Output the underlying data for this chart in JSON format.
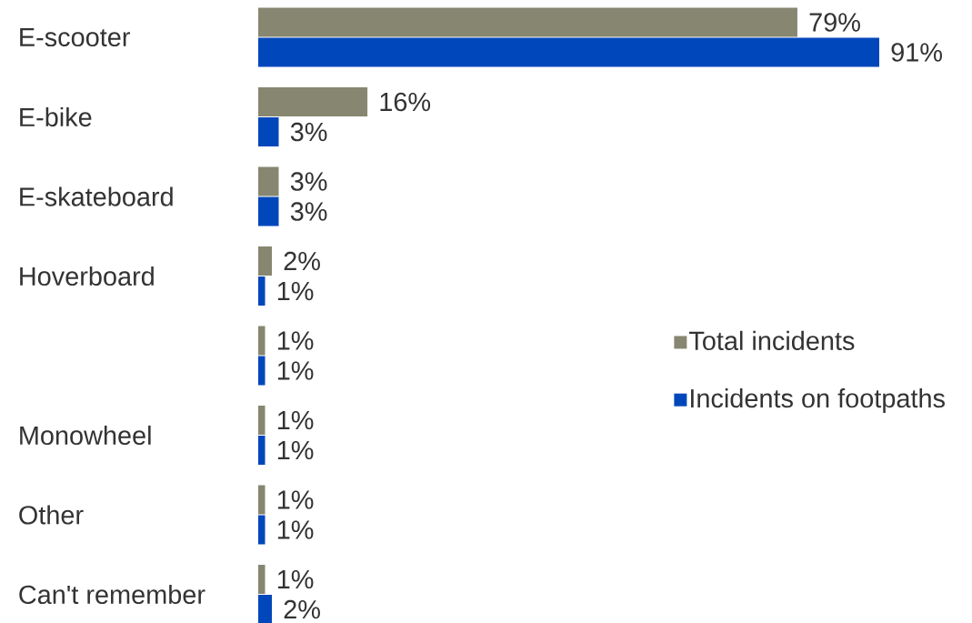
{
  "chart_data": {
    "type": "bar",
    "orientation": "horizontal",
    "categories": [
      "E-scooter",
      "E-bike",
      "E-skateboard",
      "Hoverboard",
      null,
      "Monowheel",
      "Other",
      "Can't remember"
    ],
    "series": [
      {
        "name": "Total incidents",
        "color": "#878670",
        "values": [
          79,
          16,
          3,
          2,
          1,
          1,
          1,
          1
        ],
        "value_labels": [
          "79%",
          "16%",
          "3%",
          "2%",
          "1%",
          "1%",
          "1%",
          "1%"
        ]
      },
      {
        "name": "Incidents on footpaths",
        "color": "#0047bb",
        "values": [
          91,
          3,
          3,
          1,
          1,
          1,
          1,
          2
        ],
        "value_labels": [
          "91%",
          "3%",
          "3%",
          "1%",
          "1%",
          "1%",
          "1%",
          "2%"
        ]
      }
    ],
    "legend": "right"
  }
}
